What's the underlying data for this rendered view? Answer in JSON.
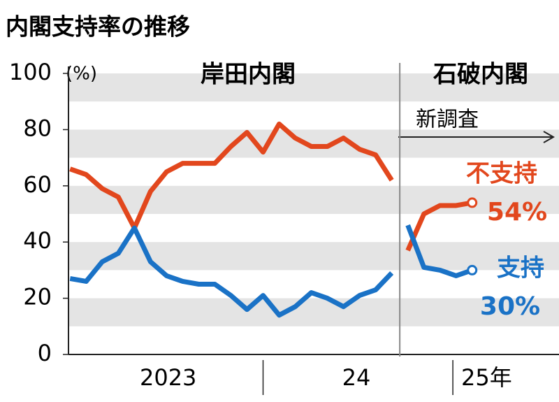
{
  "chart_data": {
    "type": "line",
    "title": "内閣支持率の推移",
    "y_unit": "(%)",
    "periods": [
      {
        "label": "岸田内閣",
        "note": null
      },
      {
        "label": "石破内閣",
        "note": "新調査"
      }
    ],
    "x": [
      0,
      1,
      2,
      3,
      4,
      5,
      6,
      7,
      8,
      9,
      10,
      11,
      12,
      13,
      14,
      15,
      16,
      17,
      18,
      19,
      20,
      20.5,
      21,
      22,
      23,
      24,
      25
    ],
    "series": [
      {
        "name": "不支持",
        "color": "#e2471d",
        "values": [
          66,
          64,
          59,
          56,
          45,
          58,
          65,
          68,
          68,
          68,
          74,
          79,
          72,
          82,
          77,
          74,
          74,
          77,
          73,
          71,
          62,
          null,
          37,
          50,
          53,
          53,
          54
        ],
        "value_labels": [
          null,
          null,
          null,
          null,
          null,
          null,
          null,
          null,
          null,
          null,
          null,
          null,
          null,
          null,
          null,
          null,
          null,
          null,
          null,
          null,
          null,
          null,
          null,
          null,
          null,
          null,
          "54%"
        ]
      },
      {
        "name": "支持",
        "color": "#1a72c6",
        "values": [
          27,
          26,
          33,
          36,
          45,
          33,
          28,
          26,
          25,
          25,
          21,
          16,
          21,
          14,
          17,
          22,
          20,
          17,
          21,
          23,
          29,
          null,
          46,
          31,
          30,
          28,
          30
        ],
        "value_labels": [
          null,
          null,
          null,
          null,
          null,
          null,
          null,
          null,
          null,
          null,
          null,
          null,
          null,
          null,
          null,
          null,
          null,
          null,
          null,
          null,
          null,
          null,
          null,
          null,
          null,
          null,
          "30%"
        ]
      }
    ],
    "ylim": [
      0,
      100
    ],
    "yticks": [
      0,
      20,
      40,
      60,
      80,
      100
    ],
    "xlim": [
      -0.1,
      30.4
    ],
    "xticks": [
      {
        "value": 6.1,
        "label": "2023"
      },
      {
        "value": 17.8,
        "label": "24"
      },
      {
        "value": 25.9,
        "label": "25年"
      }
    ],
    "year_boundaries": [
      12,
      23.8
    ],
    "grid": "bands"
  }
}
